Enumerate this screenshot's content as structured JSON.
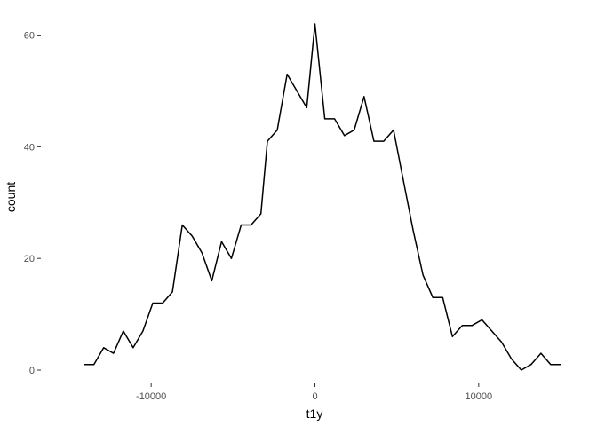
{
  "chart_data": {
    "type": "line",
    "title": "",
    "xlabel": "t1y",
    "ylabel": "count",
    "xlim": [
      -15000,
      15000
    ],
    "ylim": [
      0,
      62
    ],
    "grid": false,
    "line_color": "#000000",
    "x_ticks": [
      {
        "value": -10000,
        "label": "-10000"
      },
      {
        "value": 0,
        "label": "0"
      },
      {
        "value": 10000,
        "label": "10000"
      }
    ],
    "y_ticks": [
      {
        "value": 0,
        "label": "0"
      },
      {
        "value": 20,
        "label": "20"
      },
      {
        "value": 40,
        "label": "40"
      },
      {
        "value": 60,
        "label": "60"
      }
    ],
    "x": [
      -14100,
      -13500,
      -12900,
      -12300,
      -11700,
      -11100,
      -10500,
      -9900,
      -9300,
      -8700,
      -8100,
      -7500,
      -6900,
      -6300,
      -5700,
      -5100,
      -4500,
      -3900,
      -3300,
      -2900,
      -2300,
      -1700,
      -1100,
      -500,
      0,
      600,
      1200,
      1800,
      2400,
      3000,
      3600,
      4200,
      4800,
      5400,
      6000,
      6600,
      7200,
      7800,
      8400,
      9000,
      9600,
      10200,
      10800,
      11400,
      12000,
      12600,
      13200,
      13800,
      14400,
      15000
    ],
    "values": [
      1,
      1,
      4,
      3,
      7,
      4,
      7,
      12,
      12,
      14,
      26,
      24,
      21,
      16,
      23,
      20,
      26,
      26,
      28,
      41,
      43,
      53,
      50,
      47,
      62,
      45,
      45,
      42,
      43,
      49,
      41,
      41,
      43,
      34,
      25,
      17,
      13,
      13,
      6,
      8,
      8,
      9,
      7,
      5,
      2,
      0,
      1,
      3,
      1,
      1
    ]
  }
}
